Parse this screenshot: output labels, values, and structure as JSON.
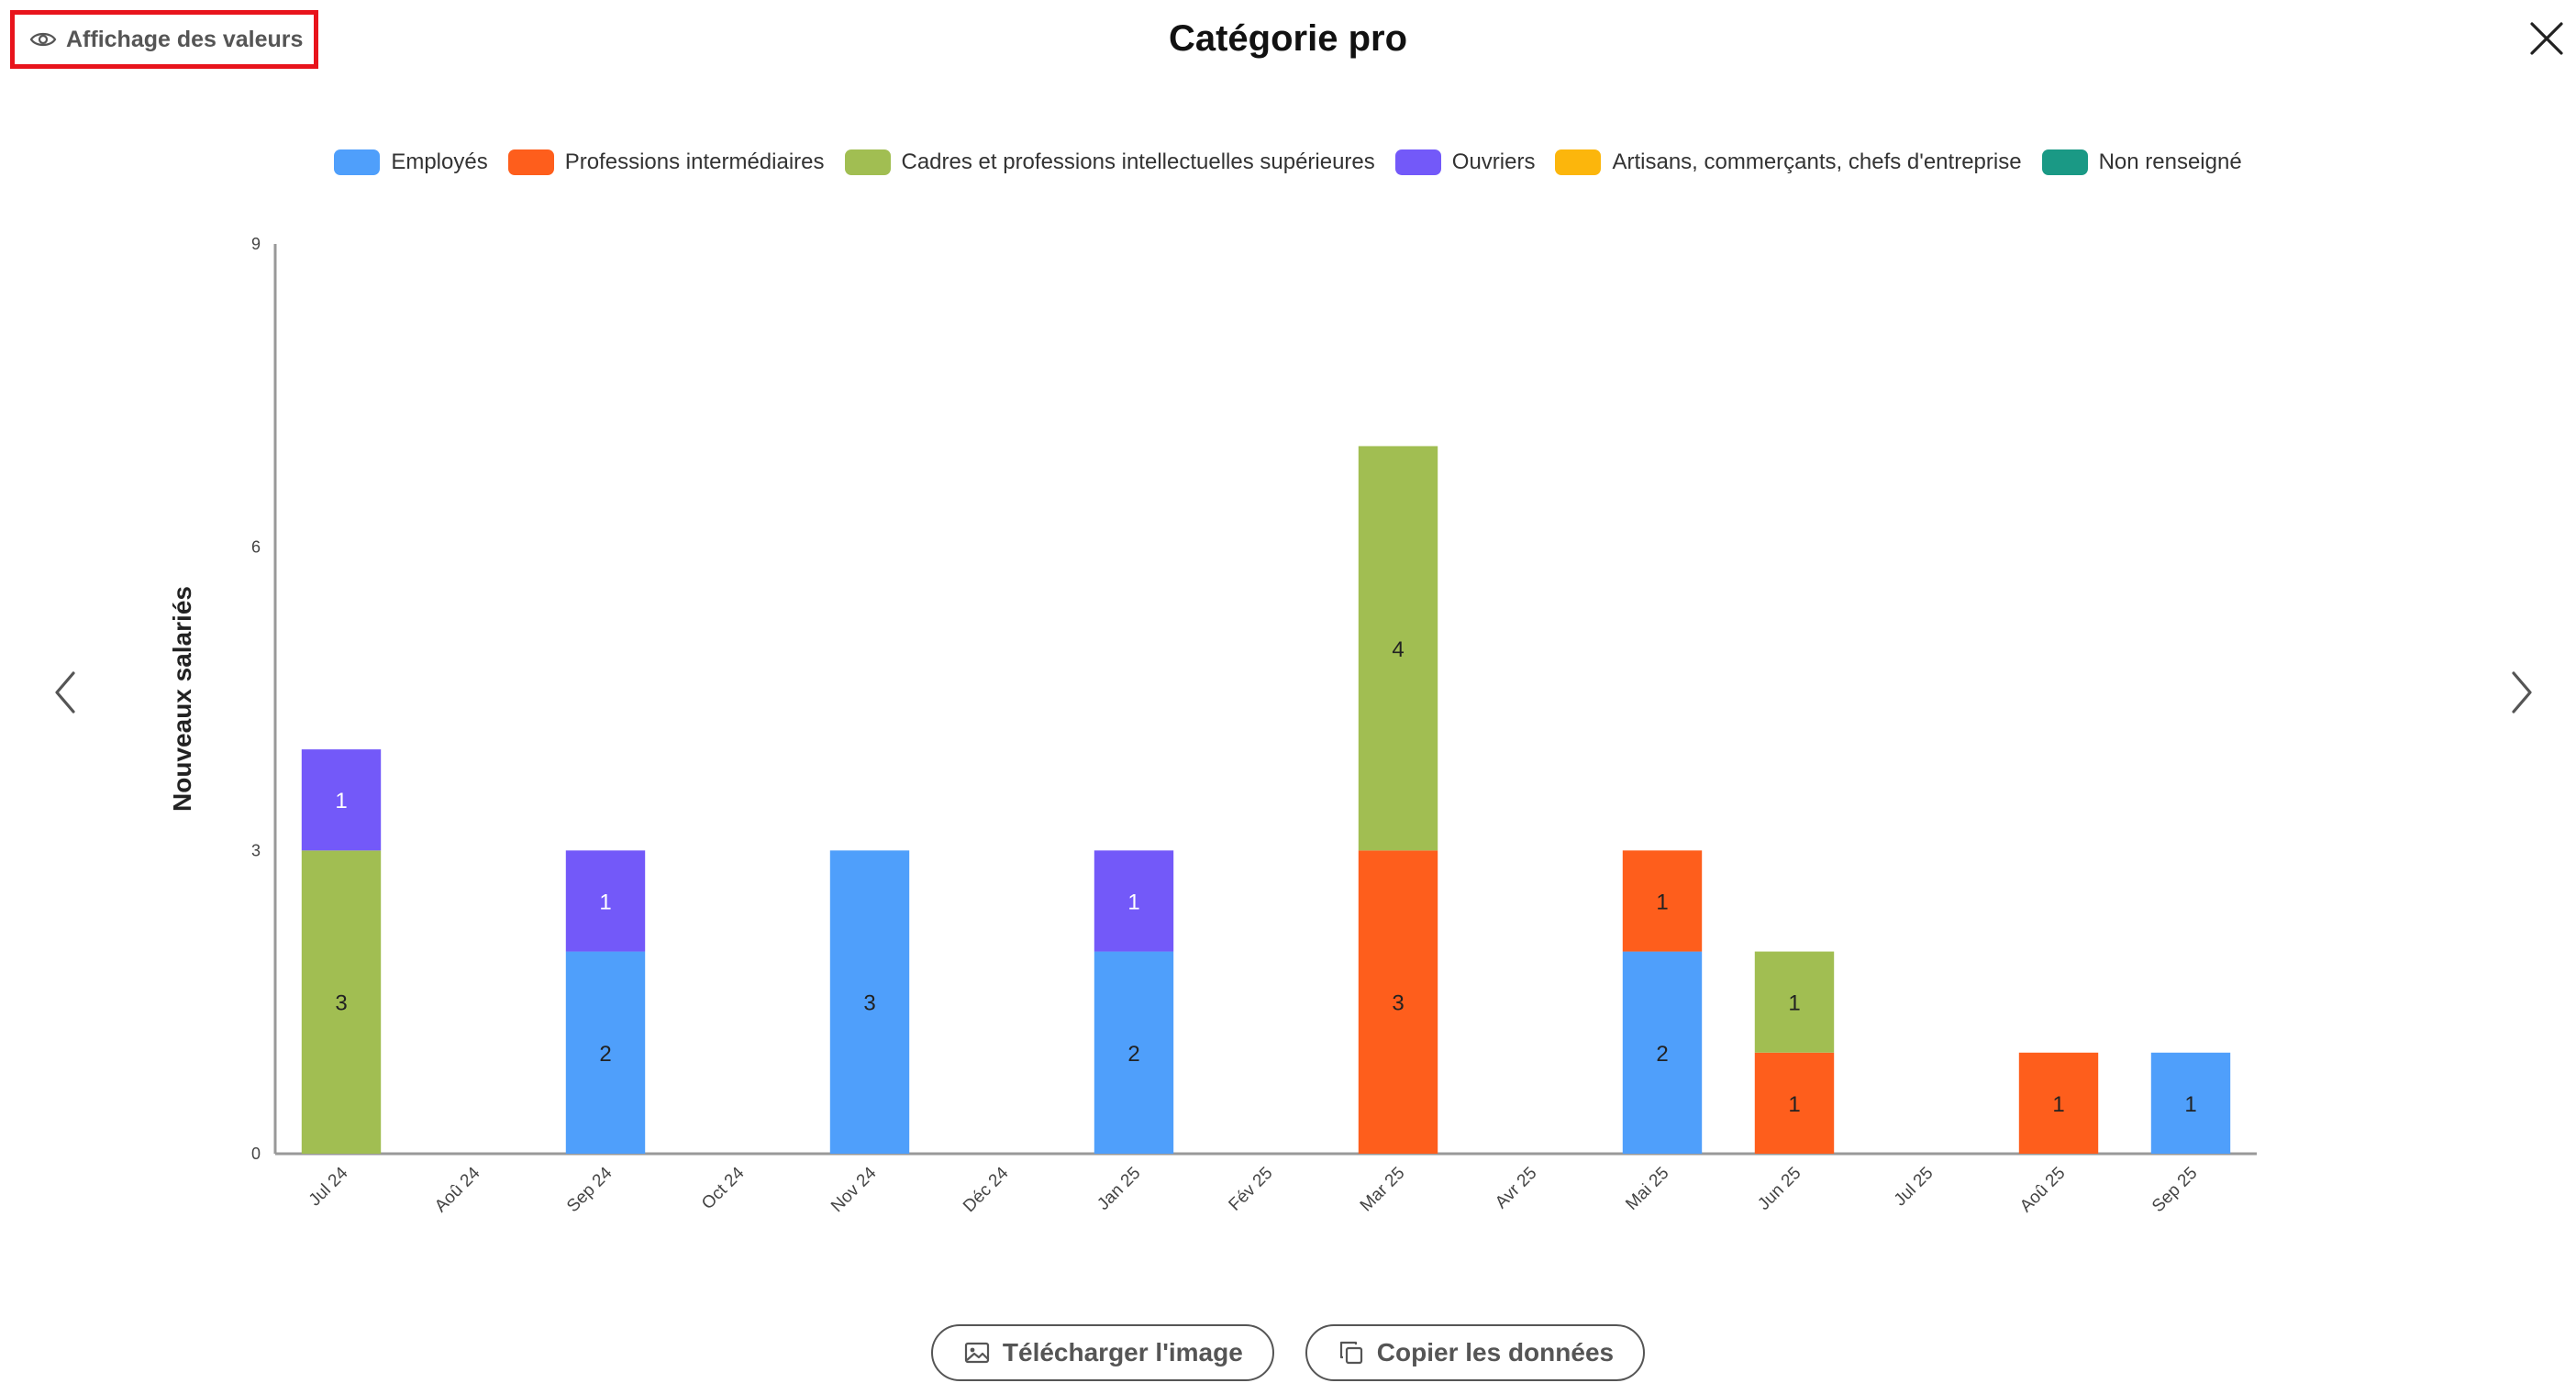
{
  "toolbar": {
    "values_toggle_label": "Affichage des valeurs",
    "values_toggle_icon": "eye-icon"
  },
  "header": {
    "title": "Catégorie pro",
    "close_icon": "close-icon"
  },
  "navigation": {
    "prev_icon": "chevron-left-icon",
    "next_icon": "chevron-right-icon"
  },
  "actions": {
    "download_label": "Télécharger l'image",
    "download_icon": "image-icon",
    "copy_label": "Copier les données",
    "copy_icon": "copy-icon"
  },
  "chart_data": {
    "type": "bar",
    "stacked": true,
    "title": "Catégorie pro",
    "xlabel": "",
    "ylabel": "Nouveaux salariés",
    "ylim": [
      0,
      9
    ],
    "yticks": [
      0,
      3,
      6,
      9
    ],
    "show_values": true,
    "grid": false,
    "legend_position": "top",
    "categories": [
      "Jul 24",
      "Aoû 24",
      "Sep 24",
      "Oct 24",
      "Nov 24",
      "Déc 24",
      "Jan 25",
      "Fév 25",
      "Mar 25",
      "Avr 25",
      "Mai 25",
      "Jun 25",
      "Jul 25",
      "Aoû 25",
      "Sep 25"
    ],
    "series": [
      {
        "name": "Employés",
        "color": "#4f9ffb",
        "values": [
          0,
          0,
          2,
          0,
          3,
          0,
          2,
          0,
          0,
          0,
          2,
          0,
          0,
          0,
          1
        ]
      },
      {
        "name": "Professions intermédiaires",
        "color": "#fe5e1c",
        "values": [
          0,
          0,
          0,
          0,
          0,
          0,
          0,
          0,
          3,
          0,
          1,
          1,
          0,
          1,
          0
        ]
      },
      {
        "name": "Cadres et professions intellectuelles supérieures",
        "color": "#a1be52",
        "values": [
          3,
          0,
          0,
          0,
          0,
          0,
          0,
          0,
          4,
          0,
          0,
          1,
          0,
          0,
          0
        ]
      },
      {
        "name": "Ouvriers",
        "color": "#7359f9",
        "values": [
          1,
          0,
          1,
          0,
          0,
          0,
          1,
          0,
          0,
          0,
          0,
          0,
          0,
          0,
          0
        ]
      },
      {
        "name": "Artisans, commerçants, chefs d'entreprise",
        "color": "#fcb60c",
        "values": [
          0,
          0,
          0,
          0,
          0,
          0,
          0,
          0,
          0,
          0,
          0,
          0,
          0,
          0,
          0
        ]
      },
      {
        "name": "Non renseigné",
        "color": "#1a9985",
        "values": [
          0,
          0,
          0,
          0,
          0,
          0,
          0,
          0,
          0,
          0,
          0,
          0,
          0,
          0,
          0
        ]
      }
    ]
  }
}
